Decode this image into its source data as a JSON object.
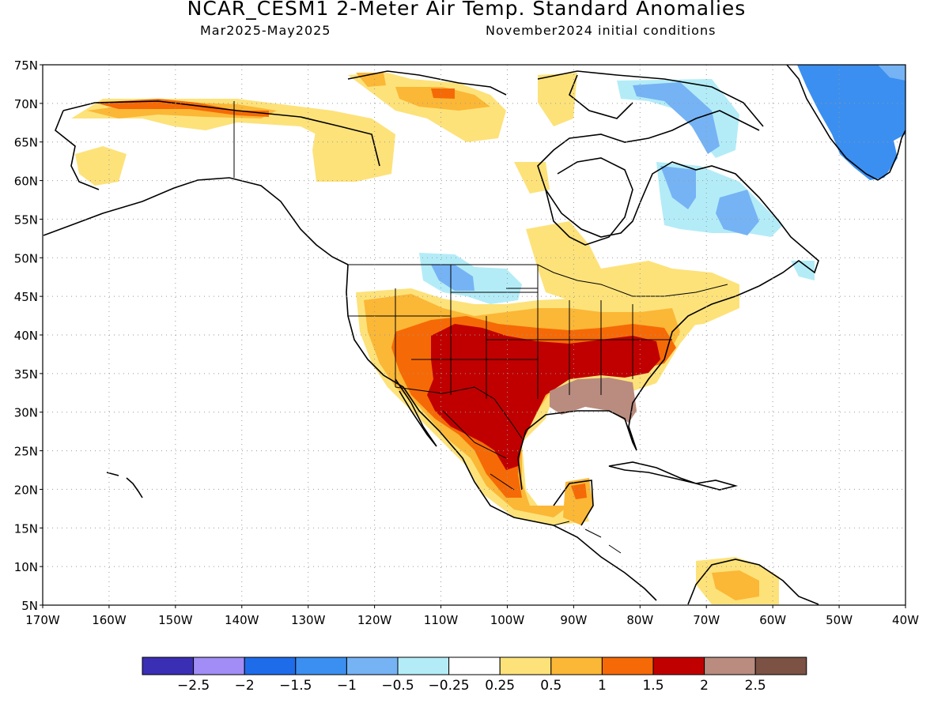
{
  "header": {
    "title": "NCAR_CESM1 2-Meter Air Temp. Standard Anomalies",
    "period": "Mar2025-May2025",
    "init": "November2024 initial conditions"
  },
  "map": {
    "lon_range": [
      -170,
      -40
    ],
    "lat_range": [
      5,
      75
    ],
    "lat_ticks": [
      "75N",
      "70N",
      "65N",
      "60N",
      "55N",
      "50N",
      "45N",
      "40N",
      "35N",
      "30N",
      "25N",
      "20N",
      "15N",
      "10N",
      "5N"
    ],
    "lon_ticks": [
      "170W",
      "160W",
      "150W",
      "140W",
      "130W",
      "120W",
      "110W",
      "100W",
      "90W",
      "80W",
      "70W",
      "60W",
      "50W",
      "40W"
    ]
  },
  "colorbar": {
    "colors": [
      "#3a2fb4",
      "#a28cf5",
      "#1f6cea",
      "#3b8ff0",
      "#76b3f5",
      "#b3ecf7",
      "#ffffff",
      "#fde27a",
      "#fbb736",
      "#f56a06",
      "#c00000",
      "#b98c7f",
      "#7b5244"
    ],
    "labels": [
      "-2.5",
      "-2",
      "-1.5",
      "-1",
      "-0.5",
      "-0.25",
      "0.25",
      "0.5",
      "1",
      "1.5",
      "2",
      "2.5"
    ]
  }
}
